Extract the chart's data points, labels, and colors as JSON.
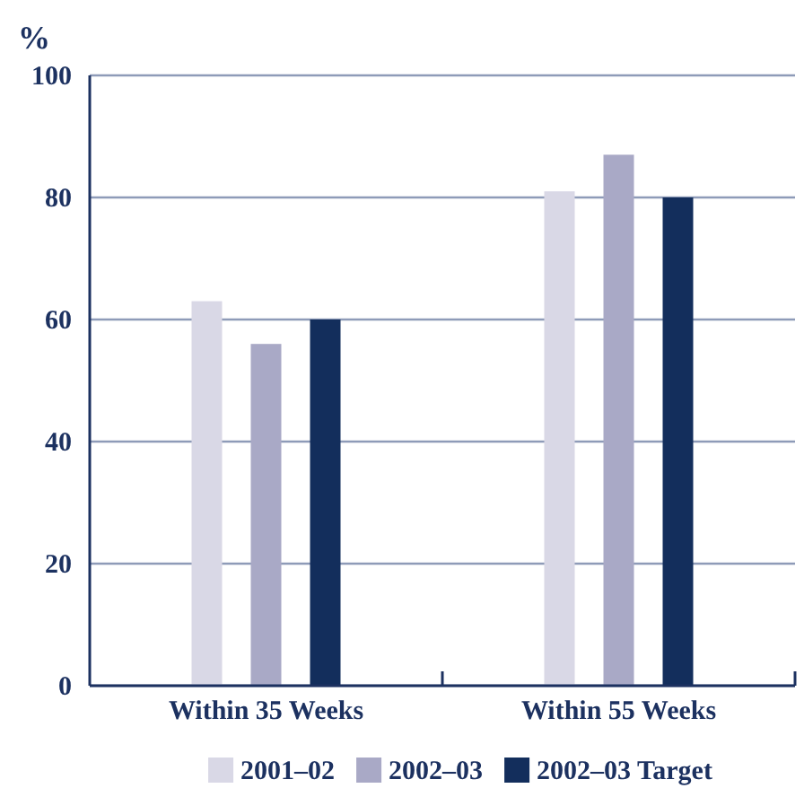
{
  "chart_data": {
    "type": "bar",
    "ylabel": "%",
    "categories": [
      "Within 35 Weeks",
      "Within 55 Weeks"
    ],
    "series": [
      {
        "name": "2001–02",
        "color": "#d9d8e6",
        "values": [
          63,
          81
        ]
      },
      {
        "name": "2002–03",
        "color": "#a9a9c6",
        "values": [
          56,
          87
        ]
      },
      {
        "name": "2002–03 Target",
        "color": "#132e5c",
        "values": [
          60,
          80
        ]
      }
    ],
    "ylim": [
      0,
      100
    ],
    "yticks": [
      0,
      20,
      40,
      60,
      80,
      100
    ],
    "grid": "y",
    "legend": "bottom"
  }
}
